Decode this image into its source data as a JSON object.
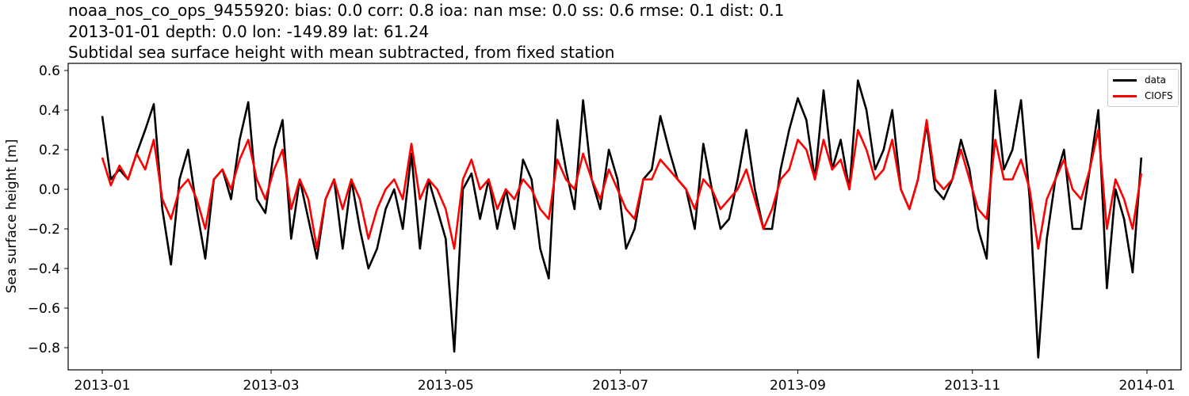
{
  "title": {
    "line1": "noaa_nos_co_ops_9455920: bias: 0.0  corr: 0.8  ioa: nan  mse: 0.0  ss: 0.6  rmse: 0.1  dist: 0.1",
    "line2": "2013-01-01 depth: 0.0 lon: -149.89 lat: 61.24",
    "line3": "Subtidal sea surface height with mean subtracted, from fixed station"
  },
  "axes": {
    "ylabel": "Sea surface height [m]",
    "yticks": [
      "0.6",
      "0.4",
      "0.2",
      "0.0",
      "−0.2",
      "−0.4",
      "−0.6",
      "−0.8"
    ],
    "xticks": [
      "2013-01",
      "2013-03",
      "2013-05",
      "2013-07",
      "2013-09",
      "2013-11",
      "2014-01"
    ]
  },
  "legend": {
    "items": [
      {
        "label": "data",
        "color": "#000000"
      },
      {
        "label": "CIOFS",
        "color": "#ff0000"
      }
    ]
  },
  "chart_data": {
    "type": "line",
    "title": "noaa_nos_co_ops_9455920: bias: 0.0  corr: 0.8  ioa: nan  mse: 0.0  ss: 0.6  rmse: 0.1  dist: 0.1 / 2013-01-01 depth: 0.0 lon: -149.89 lat: 61.24 / Subtidal sea surface height with mean subtracted, from fixed station",
    "xlabel": "",
    "ylabel": "Sea surface height [m]",
    "xlim": [
      "2012-12-19",
      "2014-01-12"
    ],
    "ylim": [
      -0.91,
      0.63
    ],
    "grid": false,
    "legend_position": "upper right",
    "x_day_of_2013": [
      1,
      4,
      7,
      10,
      13,
      16,
      19,
      22,
      25,
      28,
      31,
      34,
      37,
      40,
      43,
      46,
      49,
      52,
      55,
      58,
      61,
      64,
      67,
      70,
      73,
      76,
      79,
      82,
      85,
      88,
      91,
      94,
      97,
      100,
      103,
      106,
      109,
      112,
      115,
      118,
      121,
      124,
      127,
      130,
      133,
      136,
      139,
      142,
      145,
      148,
      151,
      154,
      157,
      160,
      163,
      166,
      169,
      172,
      175,
      178,
      181,
      184,
      187,
      190,
      193,
      196,
      199,
      202,
      205,
      208,
      211,
      214,
      217,
      220,
      223,
      226,
      229,
      232,
      235,
      238,
      241,
      244,
      247,
      250,
      253,
      256,
      259,
      262,
      265,
      268,
      271,
      274,
      277,
      280,
      283,
      286,
      289,
      292,
      295,
      298,
      301,
      304,
      307,
      310,
      313,
      316,
      319,
      322,
      325,
      328,
      331,
      334,
      337,
      340,
      343,
      346,
      349,
      352,
      355,
      358,
      361,
      364
    ],
    "series": [
      {
        "name": "data",
        "color": "#000000",
        "values": [
          0.37,
          0.05,
          0.1,
          0.05,
          0.18,
          0.3,
          0.43,
          -0.1,
          -0.38,
          0.05,
          0.2,
          -0.1,
          -0.35,
          0.05,
          0.1,
          -0.05,
          0.25,
          0.44,
          -0.05,
          -0.12,
          0.2,
          0.35,
          -0.25,
          0.05,
          -0.15,
          -0.35,
          -0.05,
          0.05,
          -0.3,
          0.05,
          -0.2,
          -0.4,
          -0.3,
          -0.1,
          0.0,
          -0.2,
          0.18,
          -0.3,
          0.05,
          -0.1,
          -0.25,
          -0.82,
          0.0,
          0.08,
          -0.15,
          0.05,
          -0.2,
          0.0,
          -0.2,
          0.15,
          0.05,
          -0.3,
          -0.45,
          0.35,
          0.1,
          -0.1,
          0.45,
          0.05,
          -0.1,
          0.2,
          0.05,
          -0.3,
          -0.2,
          0.05,
          0.1,
          0.37,
          0.2,
          0.05,
          0.0,
          -0.2,
          0.23,
          0.0,
          -0.2,
          -0.15,
          0.05,
          0.3,
          0.0,
          -0.2,
          -0.2,
          0.1,
          0.3,
          0.46,
          0.35,
          0.05,
          0.5,
          0.1,
          0.25,
          0.0,
          0.55,
          0.4,
          0.1,
          0.2,
          0.4,
          0.0,
          -0.1,
          0.05,
          0.33,
          0.0,
          -0.05,
          0.05,
          0.25,
          0.1,
          -0.2,
          -0.35,
          0.5,
          0.1,
          0.2,
          0.45,
          -0.05,
          -0.85,
          -0.25,
          0.05,
          0.2,
          -0.2,
          -0.2,
          0.1,
          0.4,
          -0.5,
          0.0,
          -0.15,
          -0.42,
          0.16
        ]
      },
      {
        "name": "CIOFS",
        "color": "#ff0000",
        "values": [
          0.16,
          0.02,
          0.12,
          0.05,
          0.18,
          0.1,
          0.25,
          -0.05,
          -0.15,
          0.0,
          0.05,
          -0.05,
          -0.2,
          0.05,
          0.1,
          0.0,
          0.15,
          0.25,
          0.05,
          -0.05,
          0.1,
          0.2,
          -0.1,
          0.05,
          -0.05,
          -0.3,
          -0.05,
          0.05,
          -0.1,
          0.05,
          -0.05,
          -0.25,
          -0.1,
          0.0,
          0.05,
          -0.05,
          0.23,
          -0.05,
          0.05,
          0.0,
          -0.1,
          -0.3,
          0.05,
          0.15,
          0.0,
          0.05,
          -0.1,
          0.0,
          -0.05,
          0.05,
          0.0,
          -0.1,
          -0.15,
          0.15,
          0.05,
          0.0,
          0.18,
          0.05,
          -0.05,
          0.1,
          0.0,
          -0.1,
          -0.15,
          0.05,
          0.05,
          0.15,
          0.1,
          0.05,
          0.0,
          -0.1,
          0.05,
          0.0,
          -0.1,
          -0.05,
          0.0,
          0.1,
          -0.05,
          -0.2,
          -0.1,
          0.05,
          0.1,
          0.25,
          0.2,
          0.05,
          0.25,
          0.1,
          0.15,
          0.0,
          0.3,
          0.2,
          0.05,
          0.1,
          0.25,
          0.0,
          -0.1,
          0.05,
          0.35,
          0.05,
          0.0,
          0.05,
          0.2,
          0.05,
          -0.1,
          -0.15,
          0.25,
          0.05,
          0.05,
          0.15,
          0.0,
          -0.3,
          -0.05,
          0.05,
          0.15,
          0.0,
          -0.05,
          0.1,
          0.3,
          -0.2,
          0.05,
          -0.05,
          -0.2,
          0.08
        ]
      }
    ]
  }
}
